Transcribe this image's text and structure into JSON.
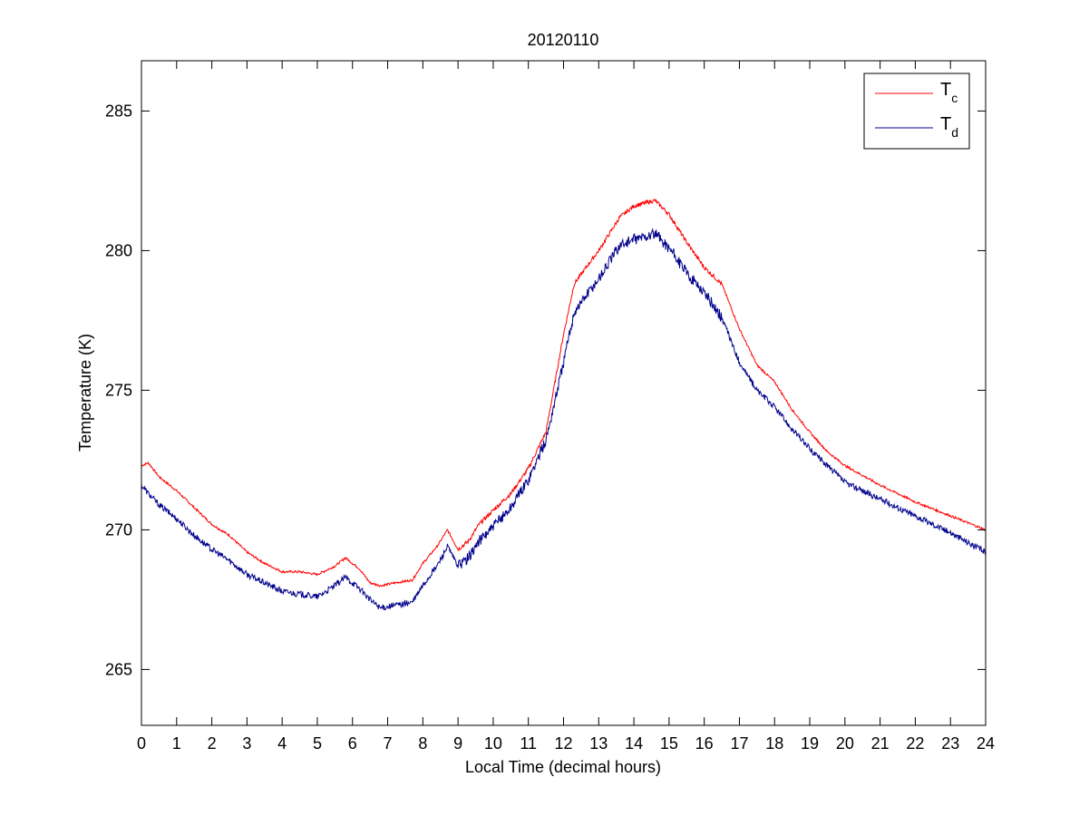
{
  "chart_data": {
    "type": "line",
    "title": "20120110",
    "xlabel": "Local Time (decimal hours)",
    "ylabel": "Temperature (K)",
    "xlim": [
      0,
      24
    ],
    "ylim": [
      263,
      286.8
    ],
    "xticks": [
      0,
      1,
      2,
      3,
      4,
      5,
      6,
      7,
      8,
      9,
      10,
      11,
      12,
      13,
      14,
      15,
      16,
      17,
      18,
      19,
      20,
      21,
      22,
      23,
      24
    ],
    "yticks": [
      265,
      270,
      275,
      280,
      285
    ],
    "grid": false,
    "legend_position": "top-right",
    "legend": [
      {
        "base": "T",
        "sub": "c",
        "color": "#ff0000"
      },
      {
        "base": "T",
        "sub": "d",
        "color": "#00008b"
      }
    ],
    "series": [
      {
        "name": "Tc",
        "color": "#ff0000",
        "x": [
          0,
          0.2,
          0.5,
          1,
          1.5,
          2,
          2.5,
          3,
          3.5,
          4,
          4.5,
          5,
          5.5,
          5.8,
          6.2,
          6.5,
          6.8,
          7.2,
          7.7,
          8,
          8.4,
          8.7,
          9,
          9.3,
          9.6,
          10,
          10.5,
          11,
          11.5,
          12,
          12.3,
          12.7,
          13,
          13.3,
          13.6,
          14,
          14.3,
          14.6,
          15,
          15.5,
          16,
          16.5,
          17,
          17.5,
          18,
          18.5,
          19,
          19.5,
          20,
          21,
          22,
          23,
          24
        ],
        "y": [
          272.3,
          272.4,
          271.9,
          271.4,
          270.8,
          270.2,
          269.8,
          269.2,
          268.8,
          268.5,
          268.5,
          268.4,
          268.7,
          269.0,
          268.6,
          268.1,
          268.0,
          268.1,
          268.2,
          268.8,
          269.4,
          270.0,
          269.3,
          269.6,
          270.2,
          270.7,
          271.3,
          272.2,
          273.5,
          277.0,
          278.8,
          279.5,
          280.0,
          280.6,
          281.2,
          281.6,
          281.7,
          281.8,
          281.3,
          280.3,
          279.4,
          278.8,
          277.2,
          275.9,
          275.3,
          274.3,
          273.5,
          272.8,
          272.3,
          271.6,
          271.0,
          270.5,
          270.0
        ]
      },
      {
        "name": "Td",
        "color": "#00008b",
        "x": [
          0,
          0.2,
          0.5,
          1,
          1.5,
          2,
          2.5,
          3,
          3.5,
          4,
          4.5,
          5,
          5.5,
          5.8,
          6.2,
          6.5,
          6.8,
          7.2,
          7.7,
          8,
          8.4,
          8.7,
          9,
          9.3,
          9.6,
          10,
          10.5,
          11,
          11.5,
          12,
          12.3,
          12.7,
          13,
          13.3,
          13.6,
          14,
          14.3,
          14.6,
          15,
          15.5,
          16,
          16.5,
          17,
          17.5,
          18,
          18.5,
          19,
          19.5,
          20,
          21,
          22,
          23,
          24
        ],
        "y": [
          271.6,
          271.3,
          270.9,
          270.4,
          269.8,
          269.3,
          268.9,
          268.4,
          268.1,
          267.8,
          267.7,
          267.6,
          268.0,
          268.3,
          267.9,
          267.5,
          267.2,
          267.3,
          267.4,
          268.0,
          268.7,
          269.4,
          268.7,
          269.0,
          269.6,
          270.1,
          270.8,
          271.8,
          273.2,
          276.0,
          277.8,
          278.5,
          279.0,
          279.6,
          280.2,
          280.4,
          280.5,
          280.6,
          280.1,
          279.2,
          278.5,
          277.6,
          276.0,
          275.0,
          274.4,
          273.6,
          272.9,
          272.3,
          271.7,
          271.1,
          270.5,
          269.9,
          269.2
        ]
      }
    ]
  }
}
